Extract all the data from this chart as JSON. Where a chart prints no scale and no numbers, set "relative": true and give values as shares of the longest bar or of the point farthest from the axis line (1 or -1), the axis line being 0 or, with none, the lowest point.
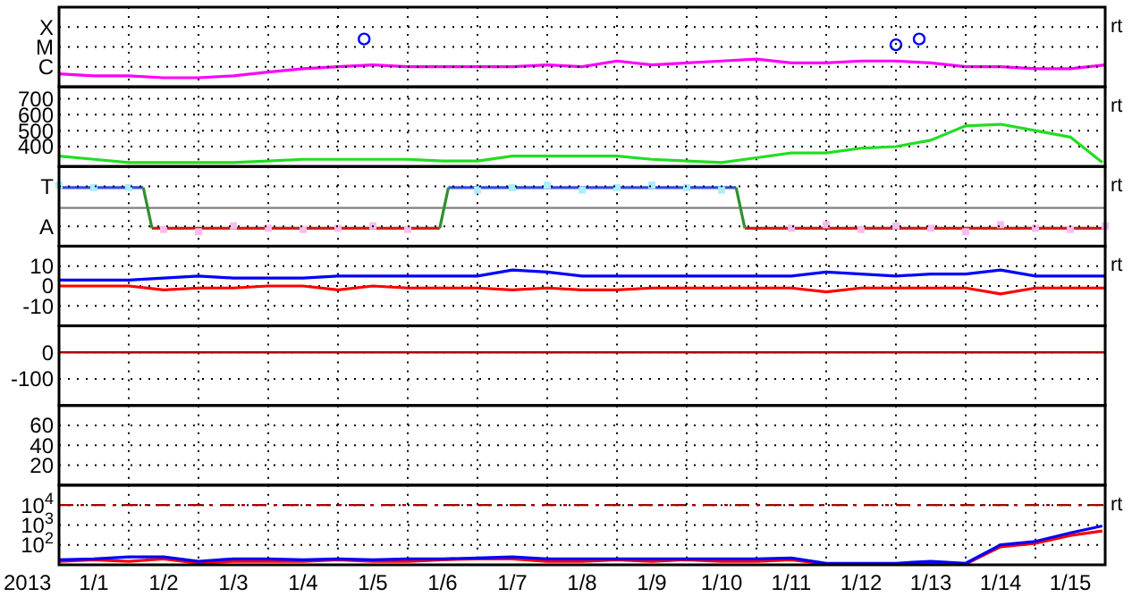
{
  "chart_data": [
    {
      "type": "line",
      "relative": true,
      "tick_labels": "y",
      "grid": true,
      "xlim": [
        "2013-01-01",
        "2013-01-16"
      ],
      "xticks": [
        {
          "value": "2013-01-02",
          "label": null
        },
        {
          "value": "2013-01-03",
          "label": null
        },
        {
          "value": "2013-01-04",
          "label": null
        },
        {
          "value": "2013-01-05",
          "label": null
        },
        {
          "value": "2013-01-06",
          "label": null
        },
        {
          "value": "2013-01-07",
          "label": null
        },
        {
          "value": "2013-01-08",
          "label": null
        },
        {
          "value": "2013-01-09",
          "label": null
        },
        {
          "value": "2013-01-10",
          "label": null
        },
        {
          "value": "2013-01-11",
          "label": null
        },
        {
          "value": "2013-01-12",
          "label": null
        },
        {
          "value": "2013-01-13",
          "label": null
        },
        {
          "value": "2013-01-14",
          "label": null
        },
        {
          "value": "2013-01-15",
          "label": null
        }
      ],
      "x": [
        "2013-01-01T00:00",
        "2013-01-01T12:00",
        "2013-01-02T00:00",
        "2013-01-02T12:00",
        "2013-01-03T00:00",
        "2013-01-03T12:00",
        "2013-01-04T00:00",
        "2013-01-04T12:00",
        "2013-01-05T00:00",
        "2013-01-05T12:00",
        "2013-01-06T00:00",
        "2013-01-06T12:00",
        "2013-01-07T00:00",
        "2013-01-07T12:00",
        "2013-01-08T00:00",
        "2013-01-08T12:00",
        "2013-01-09T00:00",
        "2013-01-09T12:00",
        "2013-01-10T00:00",
        "2013-01-10T12:00",
        "2013-01-11T00:00",
        "2013-01-11T12:00",
        "2013-01-12T00:00",
        "2013-01-12T12:00",
        "2013-01-13T00:00",
        "2013-01-13T12:00",
        "2013-01-14T00:00",
        "2013-01-14T12:00",
        "2013-01-15T00:00",
        "2013-01-15T12:00",
        "2013-01-16T00:00"
      ],
      "series": [
        {
          "color": "#ff00ff",
          "values": [
            0.27,
            0.23,
            0.23,
            0.19,
            0.19,
            0.23,
            0.31,
            0.38,
            0.42,
            0.46,
            0.42,
            0.42,
            0.42,
            0.42,
            0.46,
            0.42,
            0.54,
            0.46,
            0.5,
            0.54,
            0.58,
            0.5,
            0.5,
            0.54,
            0.54,
            0.5,
            0.42,
            0.42,
            0.38,
            0.38,
            0.46
          ]
        },
        {
          "type": "scatter",
          "marker": "circle",
          "color": "#0000ff",
          "x": [
            "2013-01-05T09:00",
            "2013-01-13T00:00",
            "2013-01-13T08:00"
          ],
          "values": [
            1.0,
            0.88,
            1.0
          ]
        }
      ],
      "annotations": [
        "C",
        "M",
        "X",
        "rt"
      ]
    },
    {
      "type": "line",
      "tick_labels": "y",
      "grid": true,
      "ylim": [
        275,
        775
      ],
      "yticks": [
        400,
        500,
        600,
        700
      ],
      "xlim": [
        "2013-01-01",
        "2013-01-16"
      ],
      "xticks": [
        {
          "value": "2013-01-02",
          "label": null
        },
        {
          "value": "2013-01-03",
          "label": null
        },
        {
          "value": "2013-01-04",
          "label": null
        },
        {
          "value": "2013-01-05",
          "label": null
        },
        {
          "value": "2013-01-06",
          "label": null
        },
        {
          "value": "2013-01-07",
          "label": null
        },
        {
          "value": "2013-01-08",
          "label": null
        },
        {
          "value": "2013-01-09",
          "label": null
        },
        {
          "value": "2013-01-10",
          "label": null
        },
        {
          "value": "2013-01-11",
          "label": null
        },
        {
          "value": "2013-01-12",
          "label": null
        },
        {
          "value": "2013-01-13",
          "label": null
        },
        {
          "value": "2013-01-14",
          "label": null
        },
        {
          "value": "2013-01-15",
          "label": null
        }
      ],
      "x": [
        "2013-01-01T00:00",
        "2013-01-01T12:00",
        "2013-01-02T00:00",
        "2013-01-02T12:00",
        "2013-01-03T00:00",
        "2013-01-03T12:00",
        "2013-01-04T00:00",
        "2013-01-04T12:00",
        "2013-01-05T00:00",
        "2013-01-05T12:00",
        "2013-01-06T00:00",
        "2013-01-06T12:00",
        "2013-01-07T00:00",
        "2013-01-07T12:00",
        "2013-01-08T00:00",
        "2013-01-08T12:00",
        "2013-01-09T00:00",
        "2013-01-09T12:00",
        "2013-01-10T00:00",
        "2013-01-10T12:00",
        "2013-01-11T00:00",
        "2013-01-11T12:00",
        "2013-01-12T00:00",
        "2013-01-12T12:00",
        "2013-01-13T00:00",
        "2013-01-13T12:00",
        "2013-01-14T00:00",
        "2013-01-14T12:00",
        "2013-01-15T00:00",
        "2013-01-15T12:00",
        "2013-01-15T23:00"
      ],
      "series": [
        {
          "color": "#22dd22",
          "values": [
            340,
            320,
            300,
            300,
            300,
            300,
            310,
            320,
            320,
            320,
            320,
            310,
            310,
            340,
            340,
            340,
            340,
            320,
            310,
            300,
            330,
            360,
            360,
            390,
            400,
            440,
            530,
            540,
            500,
            460,
            300
          ]
        }
      ],
      "annotations": [
        "rt"
      ]
    },
    {
      "type": "line",
      "relative": true,
      "tick_labels": "y",
      "grid": true,
      "xlim": [
        "2013-01-01",
        "2013-01-16"
      ],
      "xticks": [
        {
          "value": "2013-01-02",
          "label": null
        },
        {
          "value": "2013-01-03",
          "label": null
        },
        {
          "value": "2013-01-04",
          "label": null
        },
        {
          "value": "2013-01-05",
          "label": null
        },
        {
          "value": "2013-01-06",
          "label": null
        },
        {
          "value": "2013-01-07",
          "label": null
        },
        {
          "value": "2013-01-08",
          "label": null
        },
        {
          "value": "2013-01-09",
          "label": null
        },
        {
          "value": "2013-01-10",
          "label": null
        },
        {
          "value": "2013-01-11",
          "label": null
        },
        {
          "value": "2013-01-12",
          "label": null
        },
        {
          "value": "2013-01-13",
          "label": null
        },
        {
          "value": "2013-01-14",
          "label": null
        },
        {
          "value": "2013-01-15",
          "label": null
        }
      ],
      "x": [
        "2013-01-01T00:00",
        "2013-01-01T12:00",
        "2013-01-02T00:00",
        "2013-01-02T12:00",
        "2013-01-03T00:00",
        "2013-01-03T12:00",
        "2013-01-04T00:00",
        "2013-01-04T12:00",
        "2013-01-05T00:00",
        "2013-01-05T12:00",
        "2013-01-06T00:00",
        "2013-01-06T12:00",
        "2013-01-07T00:00",
        "2013-01-07T12:00",
        "2013-01-08T00:00",
        "2013-01-08T12:00",
        "2013-01-09T00:00",
        "2013-01-09T12:00",
        "2013-01-10T00:00",
        "2013-01-10T12:00",
        "2013-01-11T00:00",
        "2013-01-11T12:00",
        "2013-01-12T00:00",
        "2013-01-12T12:00",
        "2013-01-13T00:00",
        "2013-01-13T12:00",
        "2013-01-14T00:00",
        "2013-01-14T12:00",
        "2013-01-15T00:00",
        "2013-01-15T12:00",
        "2013-01-16T00:00"
      ],
      "series": [
        {
          "type": "scatter",
          "marker": "square",
          "color": "#aaeeff",
          "values": [
            0.95,
            0.85,
            0.85,
            null,
            null,
            null,
            null,
            null,
            null,
            null,
            null,
            null,
            0.75,
            0.85,
            0.95,
            0.75,
            0.85,
            0.95,
            0.85,
            0.75,
            null,
            null,
            null,
            null,
            null,
            null,
            null,
            null,
            null,
            null,
            null
          ]
        },
        {
          "type": "scatter",
          "marker": "square",
          "color": "#ffbbee",
          "values": [
            null,
            null,
            null,
            -0.9,
            -1.0,
            -0.75,
            -0.85,
            -0.9,
            -0.85,
            -0.75,
            -0.9,
            null,
            null,
            null,
            null,
            null,
            null,
            null,
            null,
            null,
            null,
            -0.85,
            -0.7,
            -0.9,
            -0.75,
            -0.85,
            -1.0,
            -0.7,
            -0.85,
            -0.9,
            -0.75
          ]
        },
        {
          "color": "#3050e0",
          "x": [
            "2013-01-01T00:00",
            "2013-01-02T05:00",
            "2013-01-04T00:00",
            "2013-01-06T14:00",
            "2013-01-10T17:00"
          ],
          "values": [
            0.85,
            0.85,
            null,
            0.85,
            0.85
          ]
        },
        {
          "color": "#d02020",
          "x": [
            "2013-01-02T08:00",
            "2013-01-06T11:00",
            "2013-01-08T00:00",
            "2013-01-10T20:00",
            "2013-01-16T00:00"
          ],
          "values": [
            -0.85,
            -0.85,
            null,
            -0.85,
            -0.85
          ]
        },
        {
          "color": "#309030",
          "x": [
            "2013-01-02T05:00",
            "2013-01-02T08:00",
            "2013-01-04T00:00",
            "2013-01-06T11:00",
            "2013-01-06T14:00",
            "2013-01-08T00:00",
            "2013-01-10T17:00",
            "2013-01-10T20:00"
          ],
          "values": [
            0.85,
            -0.85,
            null,
            -0.85,
            0.85,
            null,
            0.85,
            -0.85
          ]
        }
      ],
      "ref_lines": [
        {
          "axis": "y",
          "value": 0,
          "color": "#808080",
          "line_style": "solid"
        }
      ],
      "annotations": [
        "A",
        "T",
        "rt"
      ]
    },
    {
      "type": "line",
      "tick_labels": "y",
      "grid": true,
      "ylim": [
        -20,
        20
      ],
      "yticks": [
        -10,
        0,
        10
      ],
      "xlim": [
        "2013-01-01",
        "2013-01-16"
      ],
      "xticks": [
        {
          "value": "2013-01-02",
          "label": null
        },
        {
          "value": "2013-01-03",
          "label": null
        },
        {
          "value": "2013-01-04",
          "label": null
        },
        {
          "value": "2013-01-05",
          "label": null
        },
        {
          "value": "2013-01-06",
          "label": null
        },
        {
          "value": "2013-01-07",
          "label": null
        },
        {
          "value": "2013-01-08",
          "label": null
        },
        {
          "value": "2013-01-09",
          "label": null
        },
        {
          "value": "2013-01-10",
          "label": null
        },
        {
          "value": "2013-01-11",
          "label": null
        },
        {
          "value": "2013-01-12",
          "label": null
        },
        {
          "value": "2013-01-13",
          "label": null
        },
        {
          "value": "2013-01-14",
          "label": null
        },
        {
          "value": "2013-01-15",
          "label": null
        }
      ],
      "x": [
        "2013-01-01T00:00",
        "2013-01-01T12:00",
        "2013-01-02T00:00",
        "2013-01-02T12:00",
        "2013-01-03T00:00",
        "2013-01-03T12:00",
        "2013-01-04T00:00",
        "2013-01-04T12:00",
        "2013-01-05T00:00",
        "2013-01-05T12:00",
        "2013-01-06T00:00",
        "2013-01-06T12:00",
        "2013-01-07T00:00",
        "2013-01-07T12:00",
        "2013-01-08T00:00",
        "2013-01-08T12:00",
        "2013-01-09T00:00",
        "2013-01-09T12:00",
        "2013-01-10T00:00",
        "2013-01-10T12:00",
        "2013-01-11T00:00",
        "2013-01-11T12:00",
        "2013-01-12T00:00",
        "2013-01-12T12:00",
        "2013-01-13T00:00",
        "2013-01-13T12:00",
        "2013-01-14T00:00",
        "2013-01-14T12:00",
        "2013-01-15T00:00",
        "2013-01-15T12:00",
        "2013-01-16T00:00"
      ],
      "series": [
        {
          "color": "#0000ff",
          "values": [
            3,
            3,
            3,
            4,
            5,
            4,
            4,
            4,
            5,
            5,
            5,
            5,
            5,
            8,
            7,
            5,
            5,
            5,
            5,
            5,
            5,
            5,
            7,
            6,
            5,
            6,
            6,
            8,
            5,
            5,
            5
          ]
        },
        {
          "color": "#ff0000",
          "values": [
            0,
            0,
            0,
            -2,
            -1,
            -1,
            0,
            0,
            -2,
            0,
            -1,
            -1,
            -1,
            -2,
            -1,
            -2,
            -2,
            -1,
            -1,
            -1,
            -1,
            -1,
            -3,
            -1,
            -1,
            -1,
            -1,
            -4,
            -1,
            -1,
            -1
          ]
        }
      ],
      "annotations": [
        "rt"
      ]
    },
    {
      "type": "line",
      "tick_labels": "y",
      "grid": true,
      "ylim": [
        -200,
        100
      ],
      "yticks": [
        -100,
        0
      ],
      "xlim": [
        "2013-01-01",
        "2013-01-16"
      ],
      "xticks": [
        {
          "value": "2013-01-02",
          "label": null
        },
        {
          "value": "2013-01-03",
          "label": null
        },
        {
          "value": "2013-01-04",
          "label": null
        },
        {
          "value": "2013-01-05",
          "label": null
        },
        {
          "value": "2013-01-06",
          "label": null
        },
        {
          "value": "2013-01-07",
          "label": null
        },
        {
          "value": "2013-01-08",
          "label": null
        },
        {
          "value": "2013-01-09",
          "label": null
        },
        {
          "value": "2013-01-10",
          "label": null
        },
        {
          "value": "2013-01-11",
          "label": null
        },
        {
          "value": "2013-01-12",
          "label": null
        },
        {
          "value": "2013-01-13",
          "label": null
        },
        {
          "value": "2013-01-14",
          "label": null
        },
        {
          "value": "2013-01-15",
          "label": null
        }
      ],
      "ref_lines": [
        {
          "axis": "y",
          "value": 0,
          "color": "#aa0000",
          "line_style": "solid"
        }
      ]
    },
    {
      "type": "line",
      "tick_labels": "y",
      "grid": true,
      "ylim": [
        0,
        80
      ],
      "yticks": [
        20,
        40,
        60
      ],
      "xlim": [
        "2013-01-01",
        "2013-01-16"
      ],
      "xticks": [
        {
          "value": "2013-01-02",
          "label": null
        },
        {
          "value": "2013-01-03",
          "label": null
        },
        {
          "value": "2013-01-04",
          "label": null
        },
        {
          "value": "2013-01-05",
          "label": null
        },
        {
          "value": "2013-01-06",
          "label": null
        },
        {
          "value": "2013-01-07",
          "label": null
        },
        {
          "value": "2013-01-08",
          "label": null
        },
        {
          "value": "2013-01-09",
          "label": null
        },
        {
          "value": "2013-01-10",
          "label": null
        },
        {
          "value": "2013-01-11",
          "label": null
        },
        {
          "value": "2013-01-12",
          "label": null
        },
        {
          "value": "2013-01-13",
          "label": null
        },
        {
          "value": "2013-01-14",
          "label": null
        },
        {
          "value": "2013-01-15",
          "label": null
        }
      ]
    },
    {
      "type": "line",
      "grid": true,
      "log": true,
      "ylim": [
        10,
        100000
      ],
      "yticks": [
        {
          "value": 100,
          "label": "10$^{2}$"
        },
        {
          "value": 1000,
          "label": "10$^{3}$"
        },
        {
          "value": 10000,
          "label": "10$^{4}$"
        }
      ],
      "xlim": [
        "2013-01-01",
        "2013-01-16"
      ],
      "xlabel": "2013",
      "xticks": [
        {
          "value": "2013-01-01T12:00",
          "label": "1/1"
        },
        {
          "value": "2013-01-02",
          "label": null
        },
        {
          "value": "2013-01-02T12:00",
          "label": "1/2"
        },
        {
          "value": "2013-01-03",
          "label": null
        },
        {
          "value": "2013-01-03T12:00",
          "label": "1/3"
        },
        {
          "value": "2013-01-04",
          "label": null
        },
        {
          "value": "2013-01-04T12:00",
          "label": "1/4"
        },
        {
          "value": "2013-01-05",
          "label": null
        },
        {
          "value": "2013-01-05T12:00",
          "label": "1/5"
        },
        {
          "value": "2013-01-06",
          "label": null
        },
        {
          "value": "2013-01-06T12:00",
          "label": "1/6"
        },
        {
          "value": "2013-01-07",
          "label": null
        },
        {
          "value": "2013-01-07T12:00",
          "label": "1/7"
        },
        {
          "value": "2013-01-08",
          "label": null
        },
        {
          "value": "2013-01-08T12:00",
          "label": "1/8"
        },
        {
          "value": "2013-01-09",
          "label": null
        },
        {
          "value": "2013-01-09T12:00",
          "label": "1/9"
        },
        {
          "value": "2013-01-10",
          "label": null
        },
        {
          "value": "2013-01-10T12:00",
          "label": "1/10"
        },
        {
          "value": "2013-01-11",
          "label": null
        },
        {
          "value": "2013-01-11T12:00",
          "label": "1/11"
        },
        {
          "value": "2013-01-12",
          "label": null
        },
        {
          "value": "2013-01-12T12:00",
          "label": "1/12"
        },
        {
          "value": "2013-01-13",
          "label": null
        },
        {
          "value": "2013-01-13T12:00",
          "label": "1/13"
        },
        {
          "value": "2013-01-14",
          "label": null
        },
        {
          "value": "2013-01-14T12:00",
          "label": "1/14"
        },
        {
          "value": "2013-01-15",
          "label": null
        },
        {
          "value": "2013-01-15T12:00",
          "label": "1/15"
        }
      ],
      "x": [
        "2013-01-01T00:00",
        "2013-01-01T12:00",
        "2013-01-02T00:00",
        "2013-01-02T12:00",
        "2013-01-03T00:00",
        "2013-01-03T12:00",
        "2013-01-04T00:00",
        "2013-01-04T12:00",
        "2013-01-05T00:00",
        "2013-01-05T12:00",
        "2013-01-06T00:00",
        "2013-01-06T12:00",
        "2013-01-07T00:00",
        "2013-01-07T12:00",
        "2013-01-08T00:00",
        "2013-01-08T12:00",
        "2013-01-09T00:00",
        "2013-01-09T12:00",
        "2013-01-10T00:00",
        "2013-01-10T12:00",
        "2013-01-11T00:00",
        "2013-01-11T12:00",
        "2013-01-12T00:00",
        "2013-01-12T12:00",
        "2013-01-13T00:00",
        "2013-01-13T12:00",
        "2013-01-14T00:00",
        "2013-01-14T12:00",
        "2013-01-15T00:00",
        "2013-01-15T12:00",
        "2013-01-15T23:00"
      ],
      "series": [
        {
          "color": "#ff0000",
          "values": [
            15,
            18,
            15,
            20,
            12,
            15,
            15,
            15,
            18,
            15,
            15,
            18,
            20,
            20,
            15,
            15,
            18,
            15,
            18,
            15,
            15,
            18,
            11,
            11,
            11,
            11,
            11,
            80,
            120,
            300,
            500
          ]
        },
        {
          "color": "#0000ff",
          "values": [
            18,
            20,
            25,
            25,
            15,
            20,
            20,
            18,
            20,
            18,
            20,
            20,
            22,
            25,
            20,
            20,
            20,
            20,
            20,
            20,
            20,
            22,
            12,
            12,
            12,
            15,
            12,
            100,
            150,
            400,
            900
          ]
        }
      ],
      "ref_lines": [
        {
          "axis": "y",
          "value": 10000,
          "color": "#aa0000",
          "line_style": "dashed"
        }
      ],
      "annotations": [
        "rt"
      ]
    }
  ]
}
